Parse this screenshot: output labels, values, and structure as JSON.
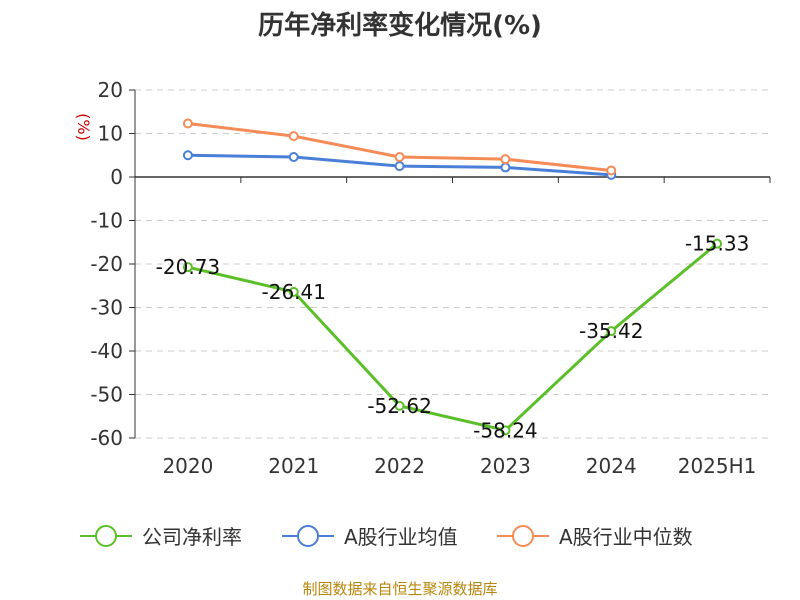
{
  "chart_data": {
    "type": "line",
    "title": "历年净利率变化情况(%)",
    "ylabel": "(%)",
    "categories": [
      "2020",
      "2021",
      "2022",
      "2023",
      "2024",
      "2025H1"
    ],
    "ylim": [
      -60,
      20
    ],
    "yticks": [
      20,
      10,
      0,
      -10,
      -20,
      -30,
      -40,
      -50,
      -60
    ],
    "grid": true,
    "legend_position": "bottom",
    "series": [
      {
        "name": "公司净利率",
        "color": "#5cbf2a",
        "values": [
          -20.73,
          -26.41,
          -52.62,
          -58.24,
          -35.42,
          -15.33
        ],
        "labels": [
          "-20.73",
          "-26.41",
          "-52.62",
          "-58.24",
          "-35.42",
          "-15.33"
        ]
      },
      {
        "name": "A股行业均值",
        "color": "#4a7fd8",
        "values": [
          5.0,
          4.6,
          2.5,
          2.2,
          0.5,
          null
        ]
      },
      {
        "name": "A股行业中位数",
        "color": "#f58b57",
        "values": [
          12.3,
          9.4,
          4.6,
          4.1,
          1.5,
          null
        ]
      }
    ]
  },
  "footer": {
    "source": "制图数据来自恒生聚源数据库"
  }
}
